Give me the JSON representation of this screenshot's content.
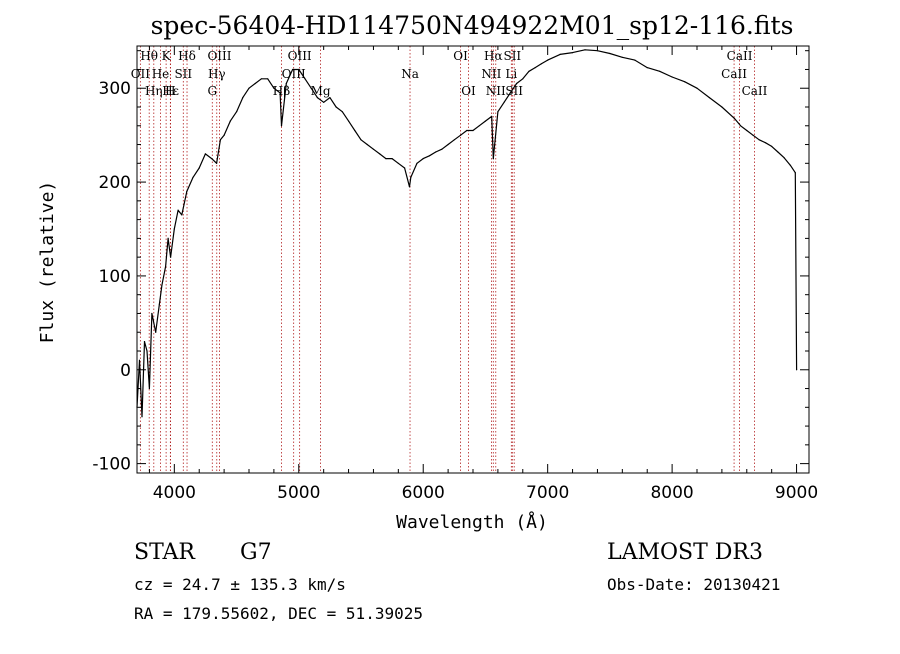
{
  "info": {
    "object_type": "STAR",
    "subclass": "G7",
    "survey": "LAMOST DR3",
    "cz": "cz = 24.7 ± 135.3 km/s",
    "obs_date": "Obs-Date: 20130421",
    "radec": "RA = 179.55602, DEC =  51.39025"
  },
  "chart_data": {
    "type": "line",
    "title": "spec-56404-HD114750N494922M01_sp12-116.fits",
    "xlabel": "Wavelength (Å)",
    "ylabel": "Flux (relative)",
    "xlim": [
      3700,
      9100
    ],
    "ylim": [
      -110,
      345
    ],
    "x_ticks": [
      4000,
      5000,
      6000,
      7000,
      8000,
      9000
    ],
    "y_ticks": [
      -100,
      0,
      100,
      200,
      300
    ],
    "grid": false,
    "legend": "none",
    "colors": {
      "spectrum": "#000000",
      "line_markers": "#b22222"
    },
    "series": [
      {
        "x": [
          3700,
          3720,
          3740,
          3760,
          3780,
          3800,
          3820,
          3850,
          3880,
          3900,
          3930,
          3950,
          3970,
          4000,
          4030,
          4060,
          4100,
          4150,
          4200,
          4250,
          4300,
          4340,
          4370,
          4400,
          4450,
          4500,
          4550,
          4600,
          4650,
          4700,
          4750,
          4800,
          4850,
          4861,
          4900,
          4950,
          5000,
          5050,
          5100,
          5150,
          5200,
          5250,
          5300,
          5350,
          5400,
          5450,
          5500,
          5550,
          5600,
          5650,
          5700,
          5750,
          5800,
          5850,
          5890,
          5900,
          5950,
          6000,
          6050,
          6100,
          6150,
          6200,
          6250,
          6300,
          6350,
          6400,
          6450,
          6500,
          6550,
          6563,
          6600,
          6650,
          6700,
          6750,
          6800,
          6850,
          6900,
          6950,
          7000,
          7100,
          7200,
          7300,
          7400,
          7500,
          7600,
          7700,
          7800,
          7900,
          8000,
          8100,
          8200,
          8300,
          8400,
          8500,
          8550,
          8600,
          8650,
          8700,
          8750,
          8800,
          8850,
          8900,
          8950,
          8990,
          9000
        ],
        "y": [
          -40,
          10,
          -50,
          30,
          20,
          -20,
          60,
          40,
          70,
          90,
          110,
          140,
          120,
          150,
          170,
          165,
          190,
          205,
          215,
          230,
          225,
          220,
          245,
          250,
          265,
          275,
          290,
          300,
          305,
          310,
          310,
          300,
          295,
          260,
          305,
          320,
          320,
          310,
          300,
          290,
          285,
          290,
          280,
          275,
          265,
          255,
          245,
          240,
          235,
          230,
          225,
          225,
          220,
          215,
          195,
          205,
          220,
          225,
          228,
          232,
          235,
          240,
          245,
          250,
          255,
          255,
          260,
          265,
          270,
          225,
          275,
          285,
          295,
          305,
          310,
          318,
          322,
          326,
          330,
          336,
          338,
          341,
          340,
          337,
          333,
          330,
          322,
          318,
          312,
          307,
          300,
          290,
          280,
          268,
          260,
          255,
          250,
          245,
          242,
          238,
          232,
          226,
          218,
          210,
          0
        ]
      }
    ],
    "line_markers": [
      {
        "label": "Hθ",
        "x": 3798,
        "row": 0
      },
      {
        "label": "OII",
        "x": 3727,
        "row": 1
      },
      {
        "label": "Hη",
        "x": 3835,
        "row": 2
      },
      {
        "label": "He",
        "x": 3889,
        "row": 1
      },
      {
        "label": "K",
        "x": 3934,
        "row": 0
      },
      {
        "label": "Hε",
        "x": 3970,
        "row": 2
      },
      {
        "label": "Hδ",
        "x": 4102,
        "row": 0
      },
      {
        "label": "SII",
        "x": 4072,
        "row": 1
      },
      {
        "label": "H",
        "x": 3968,
        "row": 2
      },
      {
        "label": "OIII",
        "x": 4363,
        "row": 0
      },
      {
        "label": "Hγ",
        "x": 4341,
        "row": 1
      },
      {
        "label": "G",
        "x": 4305,
        "row": 2
      },
      {
        "label": "OIII",
        "x": 5007,
        "row": 0
      },
      {
        "label": "OIII",
        "x": 4959,
        "row": 1
      },
      {
        "label": "Hβ",
        "x": 4861,
        "row": 2
      },
      {
        "label": "Mg",
        "x": 5175,
        "row": 2
      },
      {
        "label": "Na",
        "x": 5894,
        "row": 1
      },
      {
        "label": "OI",
        "x": 6300,
        "row": 0
      },
      {
        "label": "OI",
        "x": 6364,
        "row": 2
      },
      {
        "label": "Hα",
        "x": 6563,
        "row": 0
      },
      {
        "label": "NII",
        "x": 6548,
        "row": 1
      },
      {
        "label": "NII",
        "x": 6583,
        "row": 2
      },
      {
        "label": "SII",
        "x": 6716,
        "row": 0
      },
      {
        "label": "Li",
        "x": 6708,
        "row": 1
      },
      {
        "label": "SII",
        "x": 6731,
        "row": 2
      },
      {
        "label": "CaII",
        "x": 8542,
        "row": 0
      },
      {
        "label": "CaII",
        "x": 8498,
        "row": 1
      },
      {
        "label": "CaII",
        "x": 8662,
        "row": 2
      }
    ]
  }
}
